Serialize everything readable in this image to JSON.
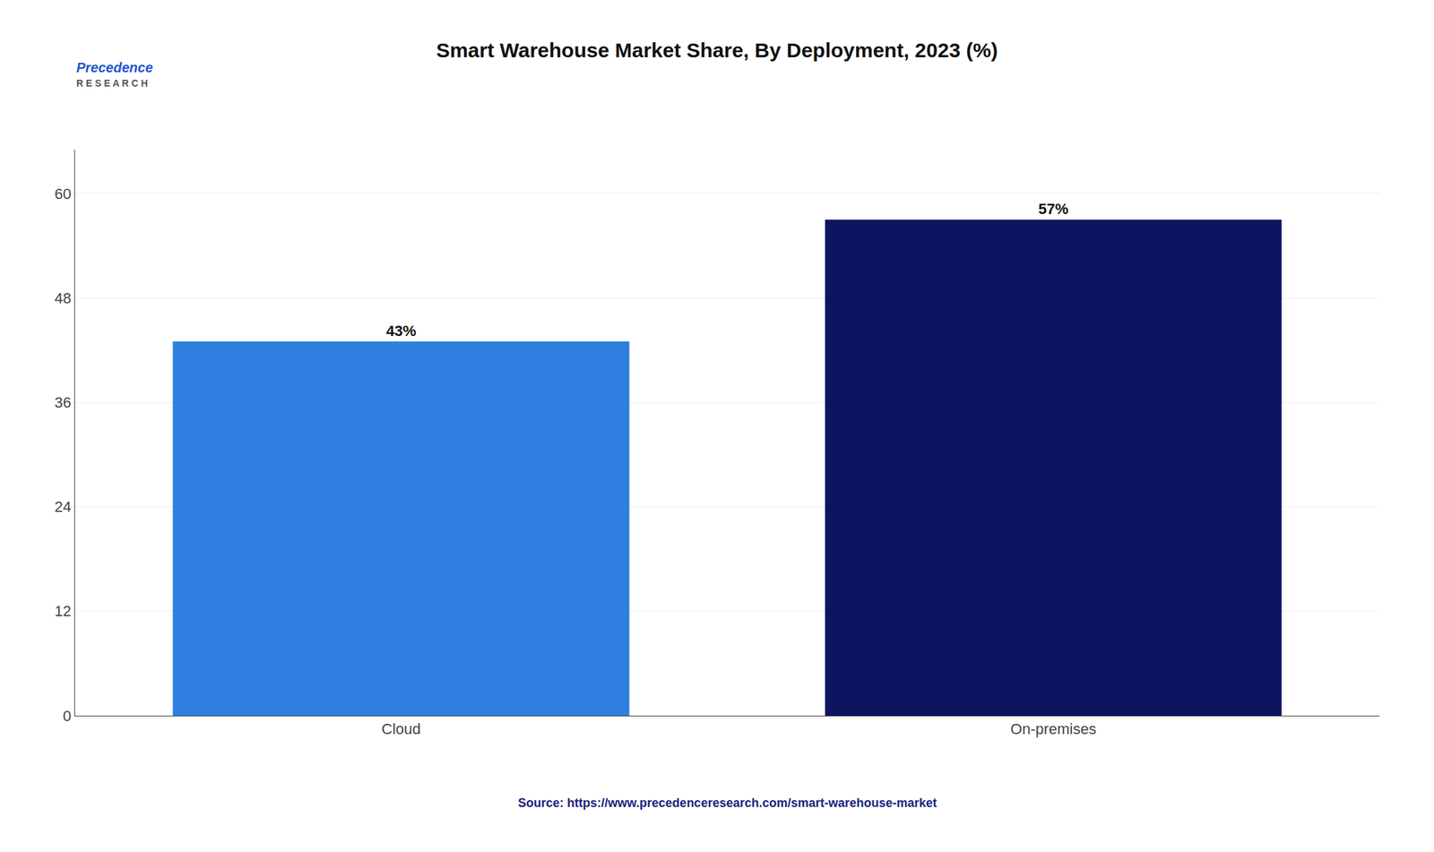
{
  "chart_data": {
    "type": "bar",
    "title": "Smart Warehouse Market Share, By Deployment, 2023 (%)",
    "categories": [
      "Cloud",
      "On-premises"
    ],
    "values": [
      43,
      57
    ],
    "value_labels": [
      "43%",
      "57%"
    ],
    "data_labels": true,
    "colors": [
      "#2F7FE0",
      "#0D1560"
    ],
    "ylim": [
      0,
      65
    ],
    "yticks": [
      0,
      12,
      24,
      36,
      48,
      60
    ],
    "grid": true,
    "annotations": [
      "Precedence",
      "R E S E A R C H"
    ],
    "source": "Source: https://www.precedenceresearch.com/smart-warehouse-market"
  }
}
